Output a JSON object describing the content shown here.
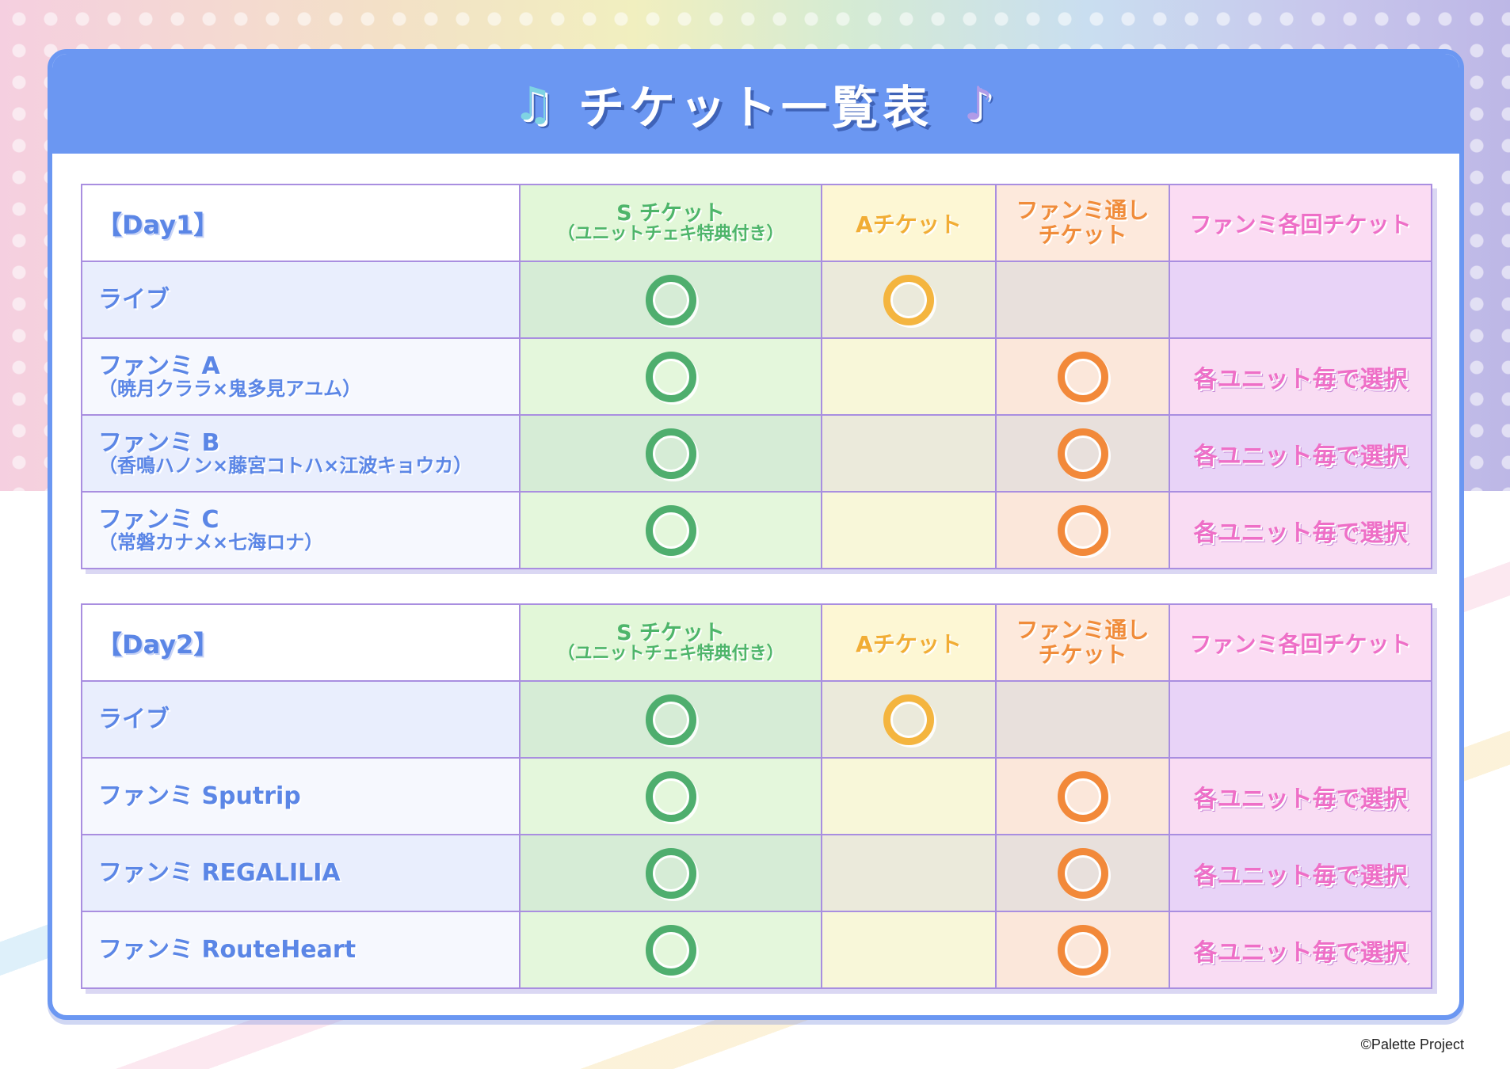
{
  "page": {
    "title": "チケット一覧表",
    "copyright": "©Palette Project"
  },
  "colors": {
    "header_blue": "#6b97f2",
    "s_green": "#4fae6e",
    "a_yellow": "#f4b53f",
    "fan_orange": "#f2893a",
    "each_pink": "#ee6fc7"
  },
  "icons": {
    "left": "music-notes-icon",
    "right": "music-note-icon"
  },
  "headers": {
    "s_ticket": "S チケット",
    "s_ticket_sub": "（ユニットチェキ特典付き）",
    "a_ticket": "Aチケット",
    "fanmeet_pass_line1": "ファンミ通し",
    "fanmeet_pass_line2": "チケット",
    "fanmeet_each": "ファンミ各回チケット"
  },
  "day1": {
    "label": "【Day1】",
    "rows": [
      {
        "name": "ライブ",
        "sub": "",
        "s": true,
        "a": true,
        "pass": false,
        "each": ""
      },
      {
        "name": "ファンミ A",
        "sub": "（暁月クララ×鬼多見アユム）",
        "s": true,
        "a": false,
        "pass": true,
        "each": "各ユニット毎で選択"
      },
      {
        "name": "ファンミ B",
        "sub": "（香鳴ハノン×藤宮コトハ×江波キョウカ）",
        "s": true,
        "a": false,
        "pass": true,
        "each": "各ユニット毎で選択"
      },
      {
        "name": "ファンミ C",
        "sub": "（常磐カナメ×七海ロナ）",
        "s": true,
        "a": false,
        "pass": true,
        "each": "各ユニット毎で選択"
      }
    ]
  },
  "day2": {
    "label": "【Day2】",
    "rows": [
      {
        "name": "ライブ",
        "sub": "",
        "s": true,
        "a": true,
        "pass": false,
        "each": ""
      },
      {
        "name": "ファンミ Sputrip",
        "sub": "",
        "s": true,
        "a": false,
        "pass": true,
        "each": "各ユニット毎で選択"
      },
      {
        "name": "ファンミ REGALILIA",
        "sub": "",
        "s": true,
        "a": false,
        "pass": true,
        "each": "各ユニット毎で選択"
      },
      {
        "name": "ファンミ RouteHeart",
        "sub": "",
        "s": true,
        "a": false,
        "pass": true,
        "each": "各ユニット毎で選択"
      }
    ]
  }
}
